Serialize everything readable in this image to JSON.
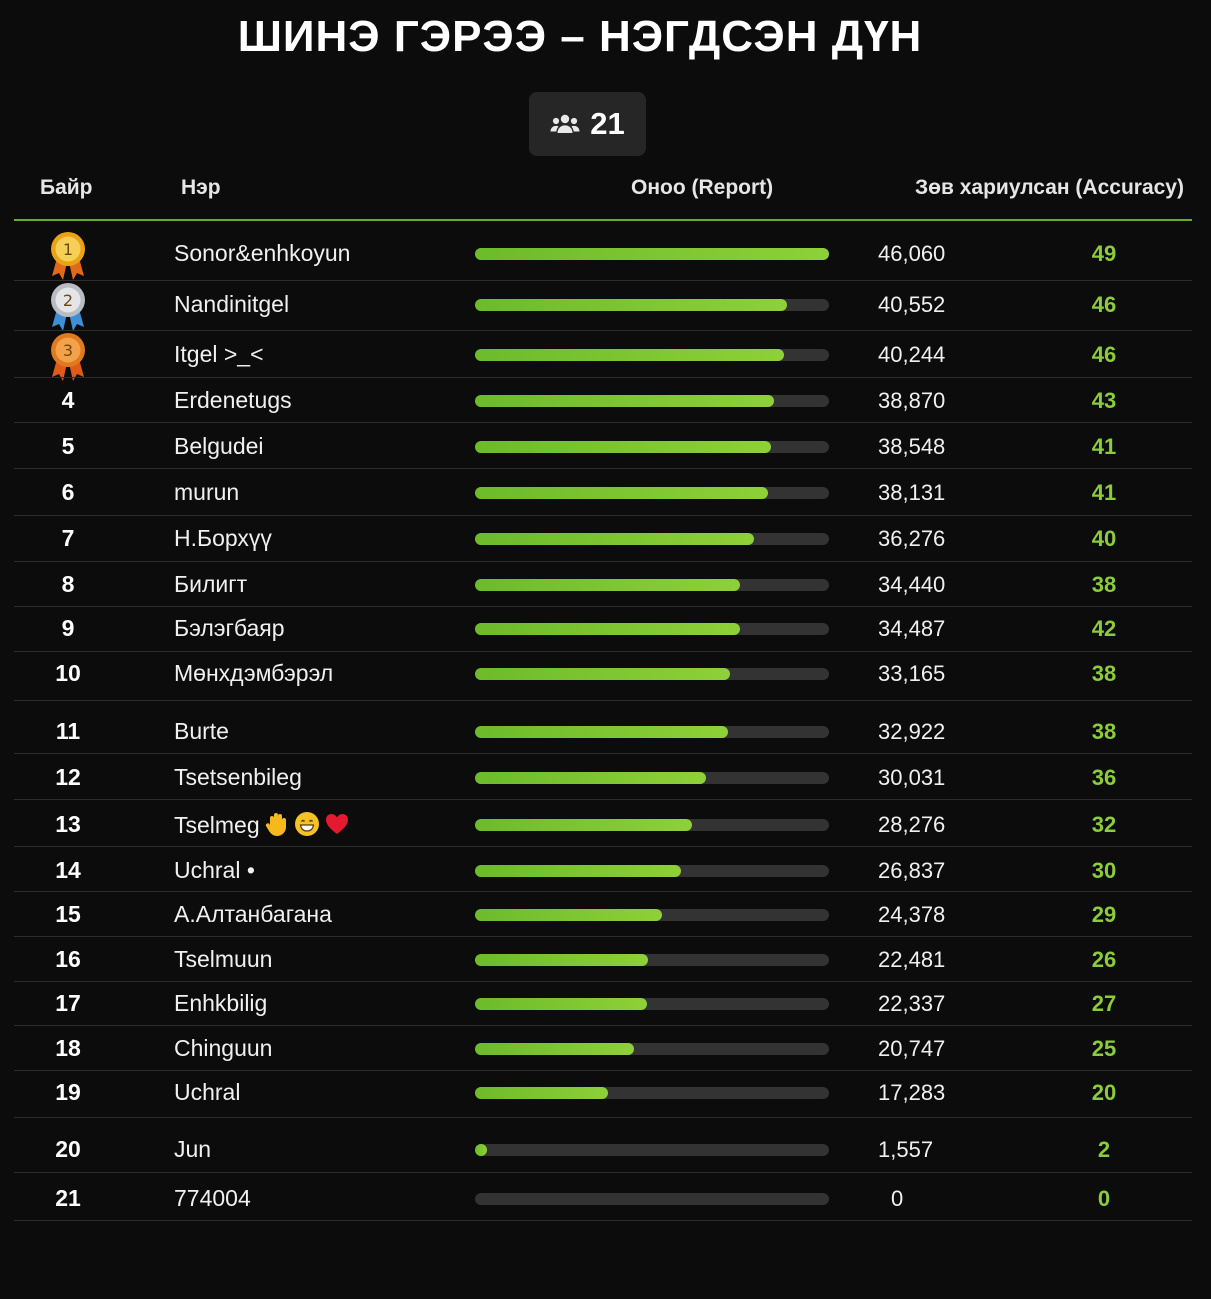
{
  "title": "ШИНЭ ГЭРЭЭ – НЭГДСЭН ДҮН",
  "participants": {
    "icon": "users-icon",
    "count": "21"
  },
  "headers": {
    "rank": "Байр",
    "name": "Нэр",
    "score": "Оноо (Report)",
    "accuracy": "Зөв хариулсан (Accuracy)"
  },
  "max_score": 46060,
  "colors": {
    "accent": "#8bcc3a",
    "bar": "#7cc332",
    "track": "#333333",
    "gold": "#e8a318",
    "silver": "#b9bcc2",
    "bronze": "#e07a1e"
  },
  "rows": [
    {
      "rank": "1",
      "medal": "gold",
      "name": "Sonor&enhkoyun",
      "score": 46060,
      "score_label": "46,060",
      "accuracy": "49"
    },
    {
      "rank": "2",
      "medal": "silver",
      "name": "Nandinitgel",
      "score": 40552,
      "score_label": "40,552",
      "accuracy": "46"
    },
    {
      "rank": "3",
      "medal": "bronze",
      "name": "Itgel >_<",
      "score": 40244,
      "score_label": "40,244",
      "accuracy": "46"
    },
    {
      "rank": "4",
      "name": "Erdenetugs",
      "score": 38870,
      "score_label": "38,870",
      "accuracy": "43"
    },
    {
      "rank": "5",
      "name": "Belgudei",
      "score": 38548,
      "score_label": "38,548",
      "accuracy": "41"
    },
    {
      "rank": "6",
      "name": "murun",
      "score": 38131,
      "score_label": "38,131",
      "accuracy": "41"
    },
    {
      "rank": "7",
      "name": "Н.Борхүү",
      "score": 36276,
      "score_label": "36,276",
      "accuracy": "40"
    },
    {
      "rank": "8",
      "name": "Билигт",
      "score": 34440,
      "score_label": "34,440",
      "accuracy": "38"
    },
    {
      "rank": "9",
      "name": "Бэлэгбаяр",
      "score": 34487,
      "score_label": "34,487",
      "accuracy": "42"
    },
    {
      "rank": "10",
      "name": "Мөнхдэмбэрэл",
      "score": 33165,
      "score_label": "33,165",
      "accuracy": "38"
    },
    {
      "rank": "11",
      "name": "Burte",
      "score": 32922,
      "score_label": "32,922",
      "accuracy": "38"
    },
    {
      "rank": "12",
      "name": "Tsetsenbileg",
      "score": 30031,
      "score_label": "30,031",
      "accuracy": "36"
    },
    {
      "rank": "13",
      "name": "Tselmeg",
      "emoji": [
        "raised-hand-icon",
        "grinning-face-icon",
        "red-heart-icon"
      ],
      "score": 28276,
      "score_label": "28,276",
      "accuracy": "32"
    },
    {
      "rank": "14",
      "name": "Uchral •",
      "score": 26837,
      "score_label": "26,837",
      "accuracy": "30"
    },
    {
      "rank": "15",
      "name": "А.Алтанбагана",
      "score": 24378,
      "score_label": "24,378",
      "accuracy": "29"
    },
    {
      "rank": "16",
      "name": "Tselmuun",
      "score": 22481,
      "score_label": "22,481",
      "accuracy": "26"
    },
    {
      "rank": "17",
      "name": "Enhkbilig",
      "score": 22337,
      "score_label": "22,337",
      "accuracy": "27"
    },
    {
      "rank": "18",
      "name": "Chinguun",
      "score": 20747,
      "score_label": "20,747",
      "accuracy": "25"
    },
    {
      "rank": "19",
      "name": "Uchral",
      "score": 17283,
      "score_label": "17,283",
      "accuracy": "20"
    },
    {
      "rank": "20",
      "name": "Jun",
      "score": 1557,
      "score_label": "1,557",
      "accuracy": "2"
    },
    {
      "rank": "21",
      "name": "774004",
      "score": 0,
      "score_label": "0",
      "accuracy": "0"
    }
  ]
}
